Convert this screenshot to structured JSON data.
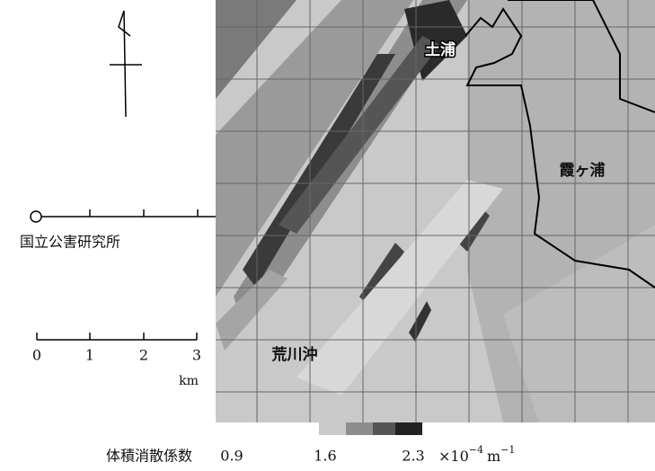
{
  "map": {
    "places": {
      "tsuchiura": "土浦",
      "kasumigaura": "霞ヶ浦",
      "arakawaoki": "荒川沖"
    },
    "site": "国立公害研究所",
    "scale": {
      "ticks": [
        "0",
        "1",
        "2",
        "3"
      ],
      "unit": "km"
    },
    "colorbar": {
      "label": "体積消散係数",
      "ticks": [
        "0.9",
        "1.6",
        "2.3"
      ],
      "unit": {
        "prefix": "×10",
        "exp": "−4",
        "m": "m",
        "mexp": "−1"
      }
    }
  }
}
